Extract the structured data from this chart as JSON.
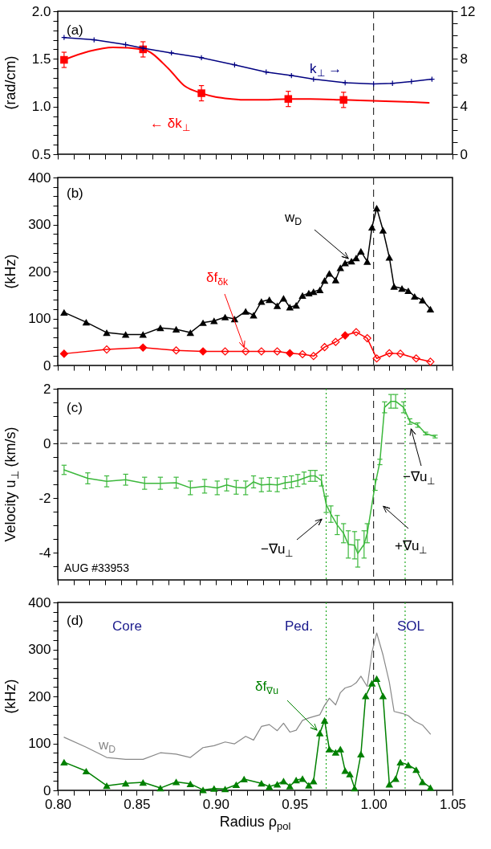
{
  "chart_data": [
    {
      "type": "line",
      "ylabel": "(rad/cm)",
      "xlim": [
        0.8,
        1.05
      ],
      "xticks": [
        0.8,
        0.81,
        0.82,
        0.83,
        0.84,
        0.85,
        0.86,
        0.87,
        0.88,
        0.89,
        0.9,
        0.91,
        0.92,
        0.93,
        0.94,
        0.95,
        0.96,
        0.97,
        0.98,
        0.99,
        1.0,
        1.01,
        1.02,
        1.03,
        1.04,
        1.05
      ],
      "ylim": [
        0.5,
        2.0
      ],
      "yticks": [
        {
          "value": 0.5,
          "label": "0.5"
        },
        {
          "value": 0.6,
          "label": null
        },
        {
          "value": 0.7,
          "label": null
        },
        {
          "value": 0.8,
          "label": null
        },
        {
          "value": 0.9,
          "label": null
        },
        {
          "value": 1.0,
          "label": "1.0"
        },
        {
          "value": 1.1,
          "label": null
        },
        {
          "value": 1.2,
          "label": null
        },
        {
          "value": 1.3,
          "label": null
        },
        {
          "value": 1.4,
          "label": null
        },
        {
          "value": 1.5,
          "label": "1.5"
        },
        {
          "value": 1.6,
          "label": null
        },
        {
          "value": 1.7,
          "label": null
        },
        {
          "value": 1.8,
          "label": null
        },
        {
          "value": 1.9,
          "label": null
        },
        {
          "value": 2.0,
          "label": "2.0"
        }
      ],
      "y2lim": [
        0,
        12
      ],
      "y2ticks": [
        0,
        {
          "value": 1,
          "label": null
        },
        {
          "value": 2,
          "label": null
        },
        {
          "value": 3,
          "label": null
        },
        4,
        {
          "value": 5,
          "label": null
        },
        {
          "value": 6,
          "label": null
        },
        {
          "value": 7,
          "label": null
        },
        8,
        {
          "value": 9,
          "label": null
        },
        {
          "value": 10,
          "label": null
        },
        {
          "value": 11,
          "label": null
        },
        12
      ],
      "tick_labels": "y",
      "series": [
        {
          "name": "← δk$_{⊥}$",
          "type": "scatter",
          "marker": "square",
          "color": "#ff0000",
          "x": [
            0.804,
            0.854,
            0.891,
            0.946,
            0.981
          ],
          "values": [
            1.49,
            1.6,
            1.14,
            1.08,
            1.07
          ],
          "errors": [
            0.08,
            0.08,
            0.08,
            0.08,
            0.08
          ]
        },
        {
          "marker": "none",
          "color": "#ff0000",
          "x": [
            0.804,
            0.82,
            0.835,
            0.854,
            0.87,
            0.88,
            0.891,
            0.9,
            0.91,
            0.92,
            0.93,
            0.946,
            0.96,
            0.981,
            1.0,
            1.02,
            1.035
          ],
          "values": [
            1.49,
            1.58,
            1.62,
            1.6,
            1.4,
            1.22,
            1.14,
            1.1,
            1.08,
            1.07,
            1.07,
            1.08,
            1.08,
            1.07,
            1.06,
            1.05,
            1.04
          ]
        },
        {
          "name": "k$_{⊥}$ →",
          "marker": "cross",
          "axis": "y2",
          "color": "#000080",
          "x": [
            0.804,
            0.823,
            0.843,
            0.854,
            0.872,
            0.891,
            0.912,
            0.932,
            0.948,
            0.962,
            0.982,
            1.0,
            1.012,
            1.024,
            1.037
          ],
          "values": [
            9.8,
            9.6,
            9.2,
            8.9,
            8.5,
            8.1,
            7.5,
            6.9,
            6.6,
            6.3,
            6.0,
            5.9,
            5.95,
            6.1,
            6.3
          ]
        }
      ],
      "ref_lines": [
        {
          "axis": "x",
          "value": 1.0,
          "color": "#333333",
          "line_style": "dashed"
        }
      ],
      "annotations": [
        "(a)"
      ]
    },
    {
      "type": "line",
      "ylabel": "(kHz)",
      "xlim": [
        0.8,
        1.05
      ],
      "xticks": [
        0.8,
        0.81,
        0.82,
        0.83,
        0.84,
        0.85,
        0.86,
        0.87,
        0.88,
        0.89,
        0.9,
        0.91,
        0.92,
        0.93,
        0.94,
        0.95,
        0.96,
        0.97,
        0.98,
        0.99,
        1.0,
        1.01,
        1.02,
        1.03,
        1.04,
        1.05
      ],
      "ylim": [
        0,
        400
      ],
      "yticks": [
        0,
        {
          "value": 20,
          "label": null
        },
        {
          "value": 40,
          "label": null
        },
        {
          "value": 60,
          "label": null
        },
        {
          "value": 80,
          "label": null
        },
        100,
        {
          "value": 120,
          "label": null
        },
        {
          "value": 140,
          "label": null
        },
        {
          "value": 160,
          "label": null
        },
        {
          "value": 180,
          "label": null
        },
        200,
        {
          "value": 220,
          "label": null
        },
        {
          "value": 240,
          "label": null
        },
        {
          "value": 260,
          "label": null
        },
        {
          "value": 280,
          "label": null
        },
        300,
        {
          "value": 320,
          "label": null
        },
        {
          "value": 340,
          "label": null
        },
        {
          "value": 360,
          "label": null
        },
        {
          "value": 380,
          "label": null
        },
        400
      ],
      "tick_labels": "y",
      "series": [
        {
          "name": "w$_{D}$",
          "marker": "triangle",
          "color": "#000000",
          "x": [
            0.804,
            0.818,
            0.831,
            0.843,
            0.854,
            0.865,
            0.875,
            0.884,
            0.892,
            0.899,
            0.906,
            0.912,
            0.919,
            0.924,
            0.929,
            0.934,
            0.939,
            0.943,
            0.947,
            0.951,
            0.955,
            0.959,
            0.962,
            0.966,
            0.969,
            0.972,
            0.976,
            0.979,
            0.982,
            0.986,
            0.989,
            0.992,
            0.996,
            0.999,
            1.002,
            1.006,
            1.01,
            1.013,
            1.018,
            1.022,
            1.026,
            1.031,
            1.036
          ],
          "values": [
            113,
            92,
            70,
            66,
            66,
            80,
            77,
            70,
            91,
            95,
            103,
            99,
            115,
            107,
            136,
            140,
            127,
            143,
            124,
            128,
            149,
            154,
            157,
            161,
            181,
            196,
            182,
            208,
            218,
            222,
            229,
            243,
            221,
            294,
            335,
            288,
            230,
            168,
            164,
            159,
            147,
            139,
            120
          ]
        },
        {
          "name": "δf$_{δk}$",
          "marker": "diamond",
          "color": "#ff0000",
          "x": [
            0.804,
            0.831,
            0.854,
            0.875,
            0.892,
            0.906,
            0.919,
            0.929,
            0.939,
            0.947,
            0.955,
            0.962,
            0.969,
            0.976,
            0.982,
            0.989,
            0.996,
            1.002,
            1.01,
            1.017,
            1.027,
            1.036
          ],
          "values": [
            25,
            34,
            38,
            32,
            30,
            30,
            30,
            30,
            30,
            26,
            24,
            20,
            39,
            50,
            64,
            71,
            58,
            15,
            26,
            25,
            15,
            8
          ]
        },
        {
          "type": "scatter",
          "marker": "diamond",
          "color": "#ff0000",
          "x": [
            0.804,
            0.854,
            0.892,
            0.947,
            0.982
          ],
          "values": [
            25,
            38,
            30,
            26,
            64
          ]
        }
      ],
      "ref_lines": [
        {
          "axis": "x",
          "value": 1.0,
          "color": "#333333",
          "line_style": "dashed"
        }
      ],
      "annotations": [
        "(b)"
      ]
    },
    {
      "type": "line",
      "ylabel": "Velocity u$_{⊥}$ (km/s)",
      "xlim": [
        0.8,
        1.05
      ],
      "xticks": [
        0.8,
        0.81,
        0.82,
        0.83,
        0.84,
        0.85,
        0.86,
        0.87,
        0.88,
        0.89,
        0.9,
        0.91,
        0.92,
        0.93,
        0.94,
        0.95,
        0.96,
        0.97,
        0.98,
        0.99,
        1.0,
        1.01,
        1.02,
        1.03,
        1.04,
        1.05
      ],
      "ylim": [
        -5,
        2
      ],
      "yticks": [
        {
          "value": -4.5,
          "label": null
        },
        -4,
        {
          "value": -3.5,
          "label": null
        },
        {
          "value": -3,
          "label": null
        },
        {
          "value": -2.5,
          "label": null
        },
        -2,
        {
          "value": -1.5,
          "label": null
        },
        {
          "value": -1,
          "label": null
        },
        {
          "value": -0.5,
          "label": null
        },
        0,
        {
          "value": 0.5,
          "label": null
        },
        {
          "value": 1,
          "label": null
        },
        {
          "value": 1.5,
          "label": null
        },
        2
      ],
      "tick_labels": "y",
      "series": [
        {
          "marker": "none",
          "color": "#3cb83c",
          "x": [
            0.804,
            0.819,
            0.831,
            0.843,
            0.855,
            0.865,
            0.875,
            0.884,
            0.893,
            0.901,
            0.907,
            0.913,
            0.919,
            0.924,
            0.929,
            0.934,
            0.939,
            0.944,
            0.948,
            0.952,
            0.956,
            0.96,
            0.963,
            0.967,
            0.97,
            0.973,
            0.977,
            0.981,
            0.984,
            0.988,
            0.99,
            0.994,
            0.996,
            1.001,
            1.004,
            1.007,
            1.011,
            1.014,
            1.019,
            1.023,
            1.028,
            1.033,
            1.039
          ],
          "values": [
            -0.97,
            -1.28,
            -1.39,
            -1.33,
            -1.46,
            -1.46,
            -1.44,
            -1.63,
            -1.57,
            -1.63,
            -1.52,
            -1.61,
            -1.63,
            -1.41,
            -1.52,
            -1.5,
            -1.52,
            -1.44,
            -1.41,
            -1.36,
            -1.27,
            -1.19,
            -1.19,
            -1.36,
            -2.23,
            -2.59,
            -2.99,
            -3.29,
            -3.7,
            -3.73,
            -4.03,
            -3.7,
            -3.29,
            -1.52,
            -0.68,
            1.32,
            1.54,
            1.54,
            1.32,
            0.8,
            0.67,
            0.36,
            0.25
          ],
          "errors": [
            0.17,
            0.2,
            0.2,
            0.2,
            0.22,
            0.22,
            0.2,
            0.25,
            0.25,
            0.25,
            0.22,
            0.25,
            0.25,
            0.22,
            0.25,
            0.25,
            0.25,
            0.22,
            0.22,
            0.22,
            0.22,
            0.2,
            0.2,
            0.2,
            0.3,
            0.3,
            0.35,
            0.35,
            0.5,
            0.5,
            0.5,
            0.5,
            0.35,
            0.2,
            0.1,
            0.2,
            0.25,
            0.25,
            0.2,
            0.1,
            0.08,
            0.05,
            0.05
          ]
        }
      ],
      "ref_lines": [
        {
          "axis": "x",
          "value": 1.0,
          "color": "#333333",
          "line_style": "dashed"
        },
        {
          "axis": "y",
          "value": 0,
          "color": "#333333",
          "line_style": "dashed"
        },
        {
          "axis": "x",
          "value": 0.97,
          "color": "#22aa22",
          "line_style": "dotted"
        },
        {
          "axis": "x",
          "value": 1.02,
          "color": "#22aa22",
          "line_style": "dotted"
        }
      ],
      "annotations": [
        "(c)",
        "AUG #33953",
        "−∇u$_{⊥}$",
        "+∇u$_{⊥}$",
        "−∇u$_{⊥}$"
      ]
    },
    {
      "type": "line",
      "ylabel": "(kHz)",
      "xlabel": "Radius ρ$_{pol}$",
      "xlim": [
        0.8,
        1.05
      ],
      "xticks": [
        {
          "value": 0.8,
          "label": "0.80"
        },
        {
          "value": 0.81,
          "label": null
        },
        {
          "value": 0.82,
          "label": null
        },
        {
          "value": 0.83,
          "label": null
        },
        {
          "value": 0.84,
          "label": null
        },
        {
          "value": 0.85,
          "label": "0.85"
        },
        {
          "value": 0.86,
          "label": null
        },
        {
          "value": 0.87,
          "label": null
        },
        {
          "value": 0.88,
          "label": null
        },
        {
          "value": 0.89,
          "label": null
        },
        {
          "value": 0.9,
          "label": "0.90"
        },
        {
          "value": 0.91,
          "label": null
        },
        {
          "value": 0.92,
          "label": null
        },
        {
          "value": 0.93,
          "label": null
        },
        {
          "value": 0.94,
          "label": null
        },
        {
          "value": 0.95,
          "label": "0.95"
        },
        {
          "value": 0.96,
          "label": null
        },
        {
          "value": 0.97,
          "label": null
        },
        {
          "value": 0.98,
          "label": null
        },
        {
          "value": 0.99,
          "label": null
        },
        {
          "value": 1.0,
          "label": "1.00"
        },
        {
          "value": 1.01,
          "label": null
        },
        {
          "value": 1.02,
          "label": null
        },
        {
          "value": 1.03,
          "label": null
        },
        {
          "value": 1.04,
          "label": null
        },
        {
          "value": 1.05,
          "label": "1.05"
        }
      ],
      "ylim": [
        0,
        400
      ],
      "yticks": [
        0,
        {
          "value": 20,
          "label": null
        },
        {
          "value": 40,
          "label": null
        },
        {
          "value": 60,
          "label": null
        },
        {
          "value": 80,
          "label": null
        },
        100,
        {
          "value": 120,
          "label": null
        },
        {
          "value": 140,
          "label": null
        },
        {
          "value": 160,
          "label": null
        },
        {
          "value": 180,
          "label": null
        },
        200,
        {
          "value": 220,
          "label": null
        },
        {
          "value": 240,
          "label": null
        },
        {
          "value": 260,
          "label": null
        },
        {
          "value": 280,
          "label": null
        },
        300,
        {
          "value": 320,
          "label": null
        },
        {
          "value": 340,
          "label": null
        },
        {
          "value": 360,
          "label": null
        },
        {
          "value": 380,
          "label": null
        },
        400
      ],
      "series": [
        {
          "name": "w$_{D}$",
          "marker": "none",
          "color": "#888888",
          "x": [
            0.804,
            0.818,
            0.831,
            0.843,
            0.854,
            0.865,
            0.875,
            0.884,
            0.892,
            0.899,
            0.906,
            0.912,
            0.919,
            0.924,
            0.929,
            0.934,
            0.939,
            0.943,
            0.947,
            0.951,
            0.955,
            0.959,
            0.962,
            0.966,
            0.969,
            0.972,
            0.976,
            0.979,
            0.982,
            0.986,
            0.989,
            0.992,
            0.996,
            0.999,
            1.002,
            1.006,
            1.01,
            1.013,
            1.018,
            1.022,
            1.026,
            1.031,
            1.036
          ],
          "values": [
            113,
            92,
            70,
            66,
            66,
            80,
            77,
            70,
            91,
            95,
            103,
            99,
            115,
            107,
            136,
            140,
            127,
            143,
            124,
            128,
            149,
            154,
            157,
            161,
            181,
            196,
            182,
            208,
            218,
            222,
            229,
            243,
            221,
            294,
            335,
            288,
            230,
            168,
            164,
            159,
            147,
            139,
            120
          ]
        },
        {
          "name": "δf$_{∇u}$",
          "marker": "triangle",
          "color": "#008000",
          "x": [
            0.804,
            0.818,
            0.831,
            0.843,
            0.854,
            0.865,
            0.875,
            0.884,
            0.892,
            0.899,
            0.906,
            0.913,
            0.918,
            0.929,
            0.934,
            0.939,
            0.943,
            0.947,
            0.951,
            0.955,
            0.959,
            0.962,
            0.966,
            0.969,
            0.972,
            0.976,
            0.979,
            0.982,
            0.985,
            0.988,
            0.992,
            0.995,
            0.999,
            1.002,
            1.006,
            1.01,
            1.014,
            1.017,
            1.022,
            1.027,
            1.031,
            1.036
          ],
          "values": [
            60,
            41,
            10,
            15,
            17,
            5,
            18,
            14,
            1,
            4,
            3,
            12,
            24,
            15,
            8,
            13,
            20,
            9,
            22,
            25,
            11,
            20,
            122,
            149,
            88,
            81,
            88,
            42,
            35,
            5,
            77,
            201,
            228,
            238,
            201,
            13,
            25,
            60,
            54,
            44,
            18,
            6
          ]
        }
      ],
      "ref_lines": [
        {
          "axis": "x",
          "value": 1.0,
          "color": "#333333",
          "line_style": "dashed"
        },
        {
          "axis": "x",
          "value": 0.97,
          "color": "#22aa22",
          "line_style": "dotted"
        },
        {
          "axis": "x",
          "value": 1.02,
          "color": "#22aa22",
          "line_style": "dotted"
        }
      ],
      "annotations": [
        "(d)",
        "Core",
        "Ped.",
        "SOL"
      ]
    }
  ]
}
